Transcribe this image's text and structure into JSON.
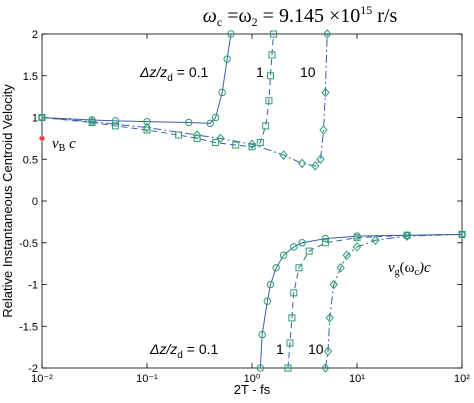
{
  "chart_data": {
    "type": "line",
    "title_parts": [
      "ω",
      "c",
      " =ω",
      "2",
      " = 9.145 ×10",
      "15",
      " r/s"
    ],
    "xlabel": "2T - fs",
    "ylabel": "Relative Instantaneous Centroid Velocity",
    "xscale": "log",
    "xlim": [
      0.01,
      100
    ],
    "xticks": [
      {
        "value": 0.01,
        "label": "10⁻²"
      },
      {
        "value": 0.1,
        "label": "10⁻¹"
      },
      {
        "value": 1,
        "label": "10⁰"
      },
      {
        "value": 10,
        "label": "10¹"
      },
      {
        "value": 100,
        "label": "10²"
      }
    ],
    "ylim": [
      -2,
      2
    ],
    "yticks": [
      -2,
      -1.5,
      -1,
      -0.5,
      0,
      0.5,
      1,
      1.5,
      2
    ],
    "series": [
      {
        "color": "#3d5fa8",
        "marker_color": "#2a9d6e",
        "dash": "none",
        "marker": "circle",
        "x": [
          0.01,
          0.03,
          0.05,
          0.1,
          0.25,
          0.4,
          0.45,
          0.52,
          0.58,
          0.63
        ],
        "values": [
          1.0,
          0.97,
          0.96,
          0.95,
          0.94,
          0.93,
          1.0,
          1.3,
          1.7,
          2.0
        ]
      },
      {
        "color": "#3d5fa8",
        "marker_color": "#2a9d6e",
        "dash": "6 4",
        "marker": "square",
        "x": [
          0.01,
          0.03,
          0.05,
          0.1,
          0.2,
          0.3,
          0.45,
          0.7,
          1.0,
          1.2,
          1.35,
          1.45,
          1.5,
          1.55,
          1.6
        ],
        "values": [
          1.0,
          0.94,
          0.9,
          0.85,
          0.79,
          0.75,
          0.7,
          0.67,
          0.65,
          0.7,
          0.9,
          1.2,
          1.5,
          1.75,
          2.0
        ]
      },
      {
        "color": "#3d5fa8",
        "marker_color": "#2a9d6e",
        "dash": "8 3 2 3",
        "marker": "diamond",
        "x": [
          0.01,
          0.03,
          0.1,
          0.3,
          0.5,
          1,
          2,
          3,
          4,
          4.5,
          4.8,
          5,
          5.2
        ],
        "values": [
          1.0,
          0.95,
          0.88,
          0.79,
          0.75,
          0.68,
          0.55,
          0.45,
          0.42,
          0.5,
          0.85,
          1.3,
          2.0
        ]
      },
      {
        "color": "#3d5fa8",
        "marker_color": "#2a9d6e",
        "dash": "none",
        "marker": "circle",
        "x": [
          1.2,
          1.25,
          1.4,
          1.5,
          1.7,
          2,
          2.5,
          3,
          5,
          10,
          30,
          100
        ],
        "values": [
          -2.0,
          -1.6,
          -1.2,
          -1.0,
          -0.8,
          -0.65,
          -0.55,
          -0.5,
          -0.45,
          -0.42,
          -0.41,
          -0.4
        ]
      },
      {
        "color": "#3d5fa8",
        "marker_color": "#2a9d6e",
        "dash": "6 4",
        "marker": "square",
        "x": [
          2.2,
          2.3,
          2.4,
          2.5,
          2.8,
          3.5,
          5,
          10,
          30,
          100
        ],
        "values": [
          -2.0,
          -1.7,
          -1.4,
          -1.1,
          -0.8,
          -0.6,
          -0.5,
          -0.44,
          -0.41,
          -0.4
        ]
      },
      {
        "color": "#3d5fa8",
        "marker_color": "#2a9d6e",
        "dash": "8 3 2 3",
        "marker": "diamond",
        "x": [
          5,
          5.3,
          5.5,
          6,
          7,
          8,
          10,
          15,
          30,
          100
        ],
        "values": [
          -2.0,
          -1.8,
          -1.4,
          -1.0,
          -0.8,
          -0.65,
          -0.55,
          -0.47,
          -0.42,
          -0.4
        ]
      }
    ],
    "point": {
      "x": 0.01,
      "y": 0.75,
      "color": "#d03030"
    },
    "annotations": {
      "vb": [
        "v",
        "B",
        " c"
      ],
      "vg": [
        "v",
        "g",
        "(ω",
        "c",
        ")c"
      ],
      "dz_upper": [
        "Δz/z",
        "d",
        " = 0.1"
      ],
      "dz_upper_1": "1",
      "dz_upper_10": "10",
      "dz_lower": [
        "Δz/z",
        "d",
        " = 0.1"
      ],
      "dz_lower_1": "1",
      "dz_lower_10": "10"
    }
  }
}
